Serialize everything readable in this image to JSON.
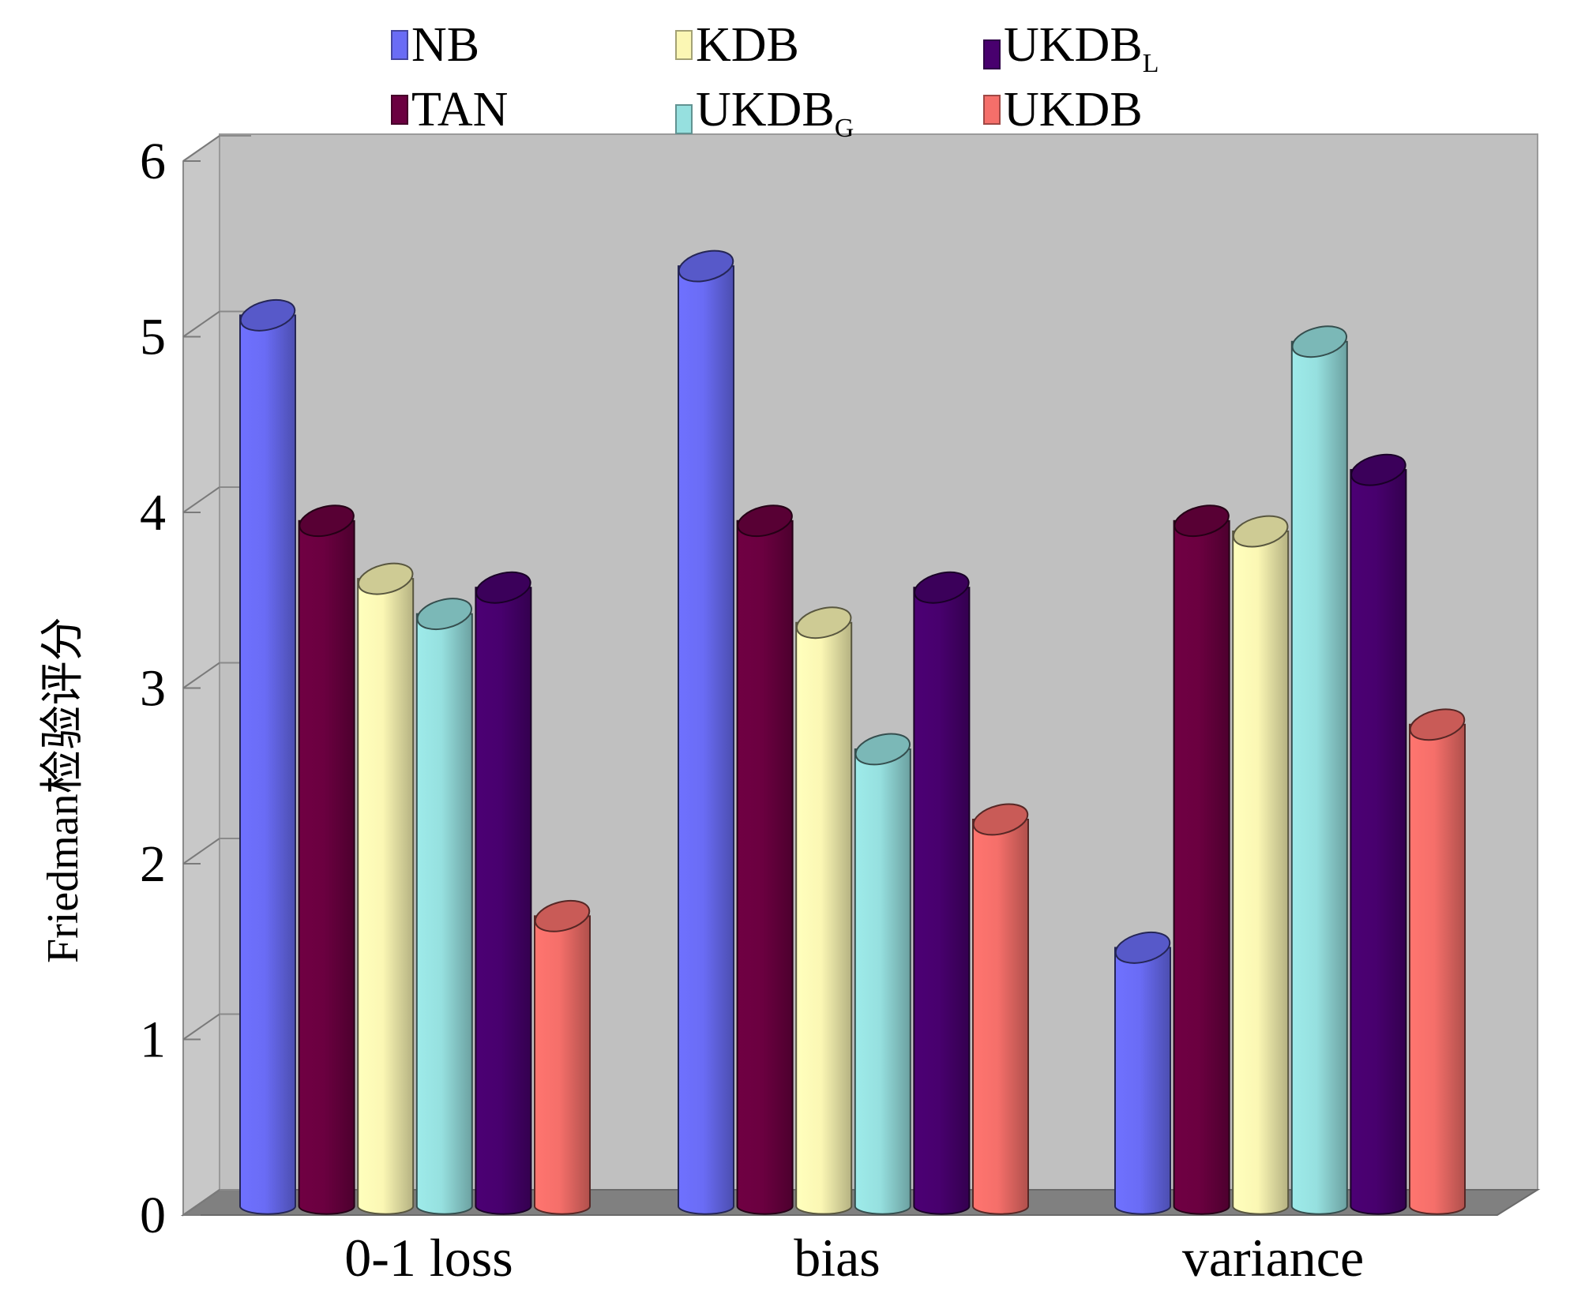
{
  "chart_data": {
    "type": "bar",
    "style": "3d-cylinder",
    "title": "",
    "xlabel": "",
    "ylabel": "Friedman检验评分",
    "ylim": [
      0,
      6
    ],
    "yticks": [
      "0",
      "1",
      "2",
      "3",
      "4",
      "5",
      "6"
    ],
    "grid": false,
    "legend_position": "top",
    "categories": [
      "0-1 loss",
      "bias",
      "variance"
    ],
    "series": [
      {
        "name": "NB",
        "label_main": "NB",
        "label_sub": "",
        "color": "#6a6cf5",
        "values": [
          5.05,
          5.33,
          1.45
        ]
      },
      {
        "name": "TAN",
        "label_main": "TAN",
        "label_sub": "",
        "color": "#6b0040",
        "values": [
          3.88,
          3.88,
          3.88
        ]
      },
      {
        "name": "KDB",
        "label_main": "KDB",
        "label_sub": "",
        "color": "#fbf7b4",
        "values": [
          3.55,
          3.3,
          3.82
        ]
      },
      {
        "name": "UKDB_G",
        "label_main": "UKDB",
        "label_sub": "G",
        "color": "#96e0df",
        "values": [
          3.35,
          2.58,
          4.9
        ]
      },
      {
        "name": "UKDB_L",
        "label_main": "UKDB",
        "label_sub": "L",
        "color": "#48006e",
        "values": [
          3.5,
          3.5,
          4.17
        ]
      },
      {
        "name": "UKDB",
        "label_main": "UKDB",
        "label_sub": "",
        "color": "#f56f6a",
        "values": [
          1.63,
          2.18,
          2.72
        ]
      }
    ]
  }
}
